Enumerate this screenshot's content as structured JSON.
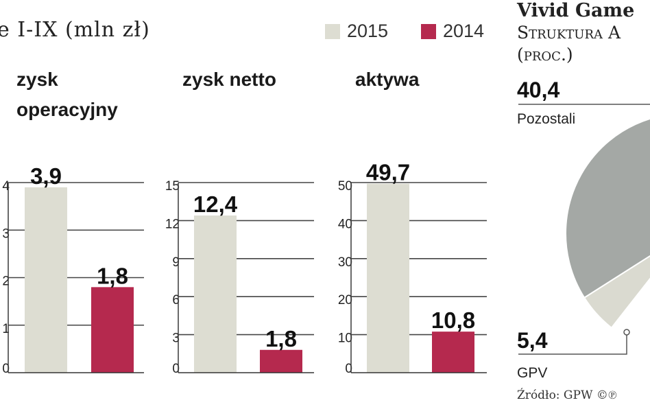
{
  "header": {
    "title": "e I-IX (mln zł)"
  },
  "legend": [
    {
      "label": "2015",
      "color": "#ddddd2"
    },
    {
      "label": "2014",
      "color": "#b5294e"
    }
  ],
  "chart_data": [
    {
      "type": "bar",
      "title": "zysk operacyjny",
      "title_lines": [
        "zysk",
        "operacyjny"
      ],
      "categories": [
        "2015",
        "2014"
      ],
      "values": [
        3.9,
        1.8
      ],
      "value_labels": [
        "3,9",
        "1,8"
      ],
      "ylim": [
        0,
        4
      ],
      "yticks": [
        "0",
        "1",
        "2",
        "3",
        "4"
      ],
      "grid": true
    },
    {
      "type": "bar",
      "title": "zysk netto",
      "title_lines": [
        "zysk netto"
      ],
      "categories": [
        "2015",
        "2014"
      ],
      "values": [
        12.4,
        1.8
      ],
      "value_labels": [
        "12,4",
        "1,8"
      ],
      "ylim": [
        0,
        15
      ],
      "yticks": [
        "0",
        "3",
        "6",
        "9",
        "12",
        "15"
      ],
      "grid": true
    },
    {
      "type": "bar",
      "title": "aktywa",
      "title_lines": [
        "aktywa"
      ],
      "categories": [
        "2015",
        "2014"
      ],
      "values": [
        49.7,
        10.8
      ],
      "value_labels": [
        "49,7",
        "10,8"
      ],
      "ylim": [
        0,
        50
      ],
      "yticks": [
        "0",
        "10",
        "20",
        "30",
        "40",
        "50"
      ],
      "grid": true
    },
    {
      "type": "pie",
      "title": "Vivid Game",
      "subtitle_lines": [
        "Struktura A",
        "(proc.)"
      ],
      "slices": [
        {
          "label": "Pozostali",
          "value": 40.4,
          "value_label": "40,4",
          "color": "#a4a8a5"
        },
        {
          "label": "GPV",
          "value": 5.4,
          "value_label": "5,4",
          "color": "#dadad0"
        }
      ]
    }
  ],
  "source": "Źródło: GPW ©℗"
}
